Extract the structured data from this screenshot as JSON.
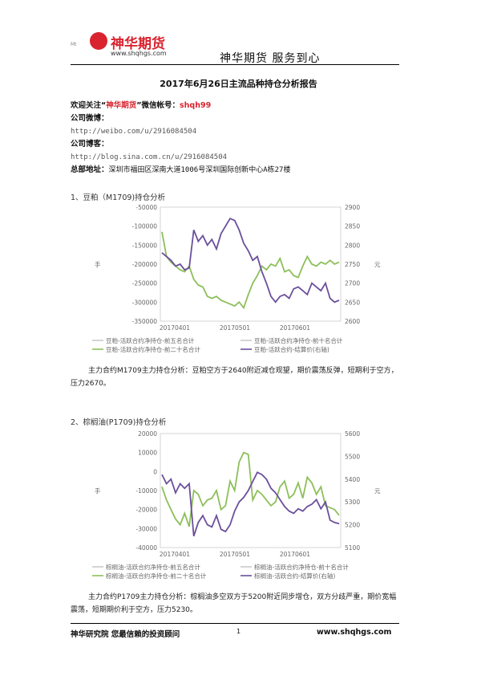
{
  "header": {
    "logo_text": "神华期货",
    "logo_url": "www.shqhgs.com",
    "logo_mark": "Mt",
    "slogan": "神华期货   服务到心"
  },
  "title": "2017年6月26日主流品种持仓分析报告",
  "info": {
    "follow_prefix": "欢迎关注“",
    "follow_name": "神华期货",
    "follow_mid": "”微信帐号：",
    "follow_id": "shqh99",
    "weibo_label": "公司微博：",
    "weibo_url": "http://weibo.com/u/2916084504",
    "blog_label": "公司博客：",
    "blog_url": "http://blog.sina.com.cn/u/2916084504",
    "address_label": "总部地址：",
    "address": "深圳市福田区深南大道1006号深圳国际创新中心A栋27楼"
  },
  "section1": {
    "heading": "1、豆粕（M1709)持仓分析",
    "paragraph": "主力合约M1709主力持仓分析：豆粕空方于2640附近减仓观望，期价震荡反弹，短期利于空方，压力2670。"
  },
  "section2": {
    "heading": "2、棕榈油(P1709)持仓分析",
    "paragraph": "主力合约P1709主力持仓分析：棕榈油多空双方于5200附近同步增仓，双方分歧严重，期价宽幅震荡，短期期价利于空方，压力5230。"
  },
  "footer": {
    "left": "神华研究院   您最信赖的投资顾问",
    "page": "1",
    "right": "www.shqhgs.com"
  },
  "chart_data": [
    {
      "type": "line",
      "x_ticks": [
        "20170401",
        "20170501",
        "20170601"
      ],
      "left_axis": {
        "ticks": [
          "-50000",
          "-100000",
          "-150000",
          "-200000",
          "-250000",
          "-300000",
          "-350000"
        ],
        "ylim": [
          -350000,
          -50000
        ],
        "label": "手"
      },
      "right_axis": {
        "ticks": [
          "2900",
          "2850",
          "2800",
          "2750",
          "2700",
          "2650",
          "2600"
        ],
        "ylim": [
          2600,
          2900
        ],
        "label": "元"
      },
      "legend": [
        "豆粕-活跃合约净持仓-前五名合计",
        "豆粕-活跃合约净持仓-前十名合计",
        "豆粕-活跃合约净持仓-前二十名合计",
        "豆粕-活跃合约-结算价(右轴)"
      ],
      "colors": {
        "net_position": "#8dbf5a",
        "settle_price": "#6b4f9c"
      },
      "series": [
        {
          "name": "豆粕-活跃合约净持仓-前二十名合计",
          "axis": "left",
          "values": [
            -115000,
            -180000,
            -195000,
            -205000,
            -215000,
            -220000,
            -205000,
            -240000,
            -255000,
            -260000,
            -285000,
            -290000,
            -285000,
            -295000,
            -300000,
            -305000,
            -310000,
            -300000,
            -315000,
            -280000,
            -250000,
            -230000,
            -205000,
            -215000,
            -200000,
            -205000,
            -185000,
            -220000,
            -215000,
            -230000,
            -235000,
            -205000,
            -180000,
            -200000,
            -205000,
            -195000,
            -200000,
            -190000,
            -200000,
            -195000
          ]
        },
        {
          "name": "豆粕-活跃合约-结算价(右轴)",
          "axis": "right",
          "values": [
            2780,
            2770,
            2760,
            2745,
            2750,
            2735,
            2740,
            2840,
            2810,
            2825,
            2800,
            2815,
            2790,
            2830,
            2850,
            2870,
            2865,
            2840,
            2805,
            2785,
            2760,
            2770,
            2730,
            2700,
            2665,
            2650,
            2665,
            2670,
            2660,
            2685,
            2690,
            2680,
            2670,
            2700,
            2690,
            2680,
            2700,
            2660,
            2650,
            2655
          ]
        }
      ]
    },
    {
      "type": "line",
      "x_ticks": [
        "20170401",
        "20170501",
        "20170601"
      ],
      "left_axis": {
        "ticks": [
          "20000",
          "10000",
          "0",
          "-10000",
          "-20000",
          "-30000",
          "-40000"
        ],
        "ylim": [
          -40000,
          20000
        ],
        "label": "手"
      },
      "right_axis": {
        "ticks": [
          "5600",
          "5500",
          "5400",
          "5300",
          "5200",
          "5100"
        ],
        "ylim": [
          5100,
          5600
        ],
        "label": "元"
      },
      "legend": [
        "棕榈油-活跃合约净持仓-前五名合计",
        "棕榈油-活跃合约净持仓-前十名合计",
        "棕榈油-活跃合约净持仓-前二十名合计",
        "棕榈油-活跃合约-结算价(右轴)"
      ],
      "colors": {
        "net_position": "#8dbf5a",
        "settle_price": "#6b4f9c"
      },
      "series": [
        {
          "name": "棕榈油-活跃合约净持仓-前二十名合计",
          "axis": "left",
          "values": [
            -8000,
            -15000,
            -20000,
            -25000,
            -28000,
            -22000,
            -29000,
            -10000,
            -12000,
            -18000,
            -15000,
            -14000,
            -10000,
            -20000,
            -18000,
            -5000,
            -10000,
            5000,
            10000,
            9000,
            -15000,
            -10000,
            -12000,
            -15000,
            -18000,
            -16000,
            -8000,
            -5000,
            -14000,
            -12000,
            -6000,
            -14000,
            -3000,
            -6000,
            -12000,
            -8000,
            -18000,
            -19000,
            -20000,
            -23000
          ]
        },
        {
          "name": "棕榈油-活跃合约-结算价(右轴)",
          "axis": "right",
          "values": [
            5420,
            5380,
            5400,
            5340,
            5380,
            5360,
            5380,
            5150,
            5210,
            5240,
            5200,
            5190,
            5240,
            5180,
            5170,
            5200,
            5260,
            5300,
            5320,
            5350,
            5390,
            5430,
            5420,
            5400,
            5360,
            5340,
            5310,
            5280,
            5260,
            5250,
            5270,
            5260,
            5280,
            5290,
            5310,
            5270,
            5300,
            5220,
            5210,
            5205
          ]
        }
      ]
    }
  ]
}
